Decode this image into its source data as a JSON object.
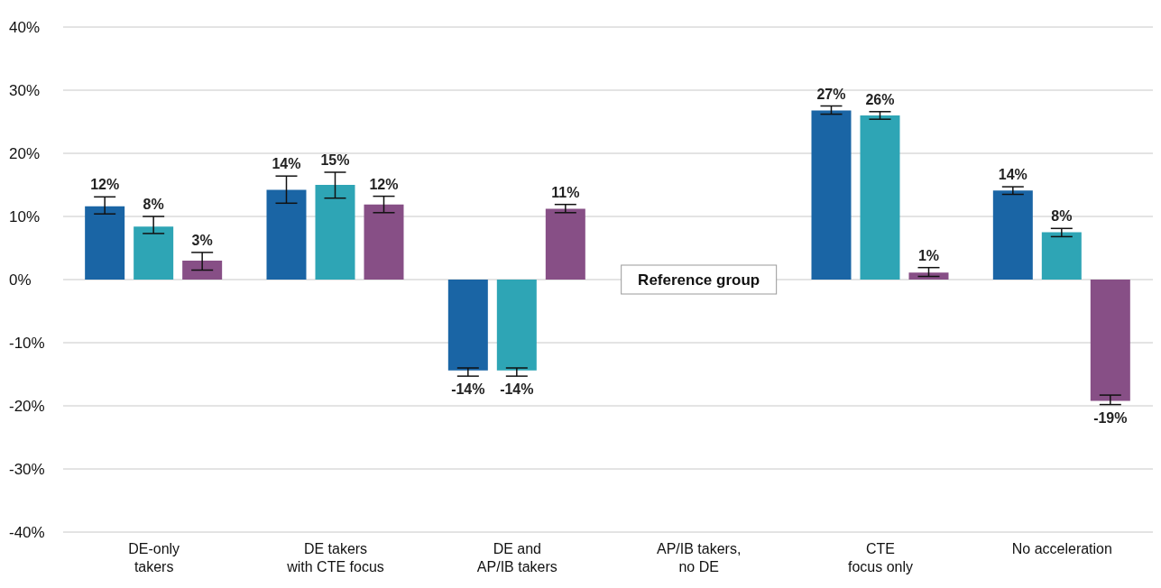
{
  "chart_data": {
    "type": "bar",
    "categories": [
      "DE-only\ntakers",
      "DE takers\nwith CTE focus",
      "DE and\nAP/IB takers",
      "AP/IB takers,\nno DE",
      "CTE\nfocus only",
      "No acceleration"
    ],
    "series": [
      {
        "color": "#1a65a5",
        "values": [
          11.6,
          14.2,
          -14.4,
          null,
          26.8,
          14.1
        ],
        "errors": [
          [
            10.4,
            13.1
          ],
          [
            12.1,
            16.4
          ],
          [
            -15.3,
            -14.0
          ],
          null,
          [
            26.2,
            27.5
          ],
          [
            13.5,
            14.7
          ]
        ],
        "value_labels": [
          "12%",
          "14%",
          "-14%",
          null,
          "27%",
          "14%"
        ]
      },
      {
        "color": "#2ea5b5",
        "values": [
          8.4,
          15.0,
          -14.4,
          null,
          26.0,
          7.5
        ],
        "errors": [
          [
            7.3,
            10.0
          ],
          [
            12.9,
            17.0
          ],
          [
            -15.3,
            -14.0
          ],
          null,
          [
            25.4,
            26.6
          ],
          [
            6.8,
            8.1
          ]
        ],
        "value_labels": [
          "8%",
          "15%",
          "-14%",
          null,
          "26%",
          "8%"
        ]
      },
      {
        "color": "#874f86",
        "values": [
          3.0,
          11.9,
          11.2,
          null,
          1.1,
          -19.2
        ],
        "errors": [
          [
            1.5,
            4.3
          ],
          [
            10.6,
            13.2
          ],
          [
            10.6,
            11.9
          ],
          null,
          [
            0.5,
            1.9
          ],
          [
            -19.8,
            -18.3
          ]
        ],
        "value_labels": [
          "3%",
          "12%",
          "11%",
          null,
          "1%",
          "-19%"
        ]
      }
    ],
    "ylim": [
      -40,
      40
    ],
    "yticks": [
      {
        "value": -40,
        "label": "-40%"
      },
      {
        "value": -30,
        "label": "-30%"
      },
      {
        "value": -20,
        "label": "-20%"
      },
      {
        "value": -10,
        "label": "-10%"
      },
      {
        "value": 0,
        "label": "0%"
      },
      {
        "value": 10,
        "label": "10%"
      },
      {
        "value": 20,
        "label": "20%"
      },
      {
        "value": 30,
        "label": "30%"
      },
      {
        "value": 40,
        "label": "40%"
      }
    ],
    "grid": "y",
    "annotations": [
      "Reference group"
    ]
  }
}
